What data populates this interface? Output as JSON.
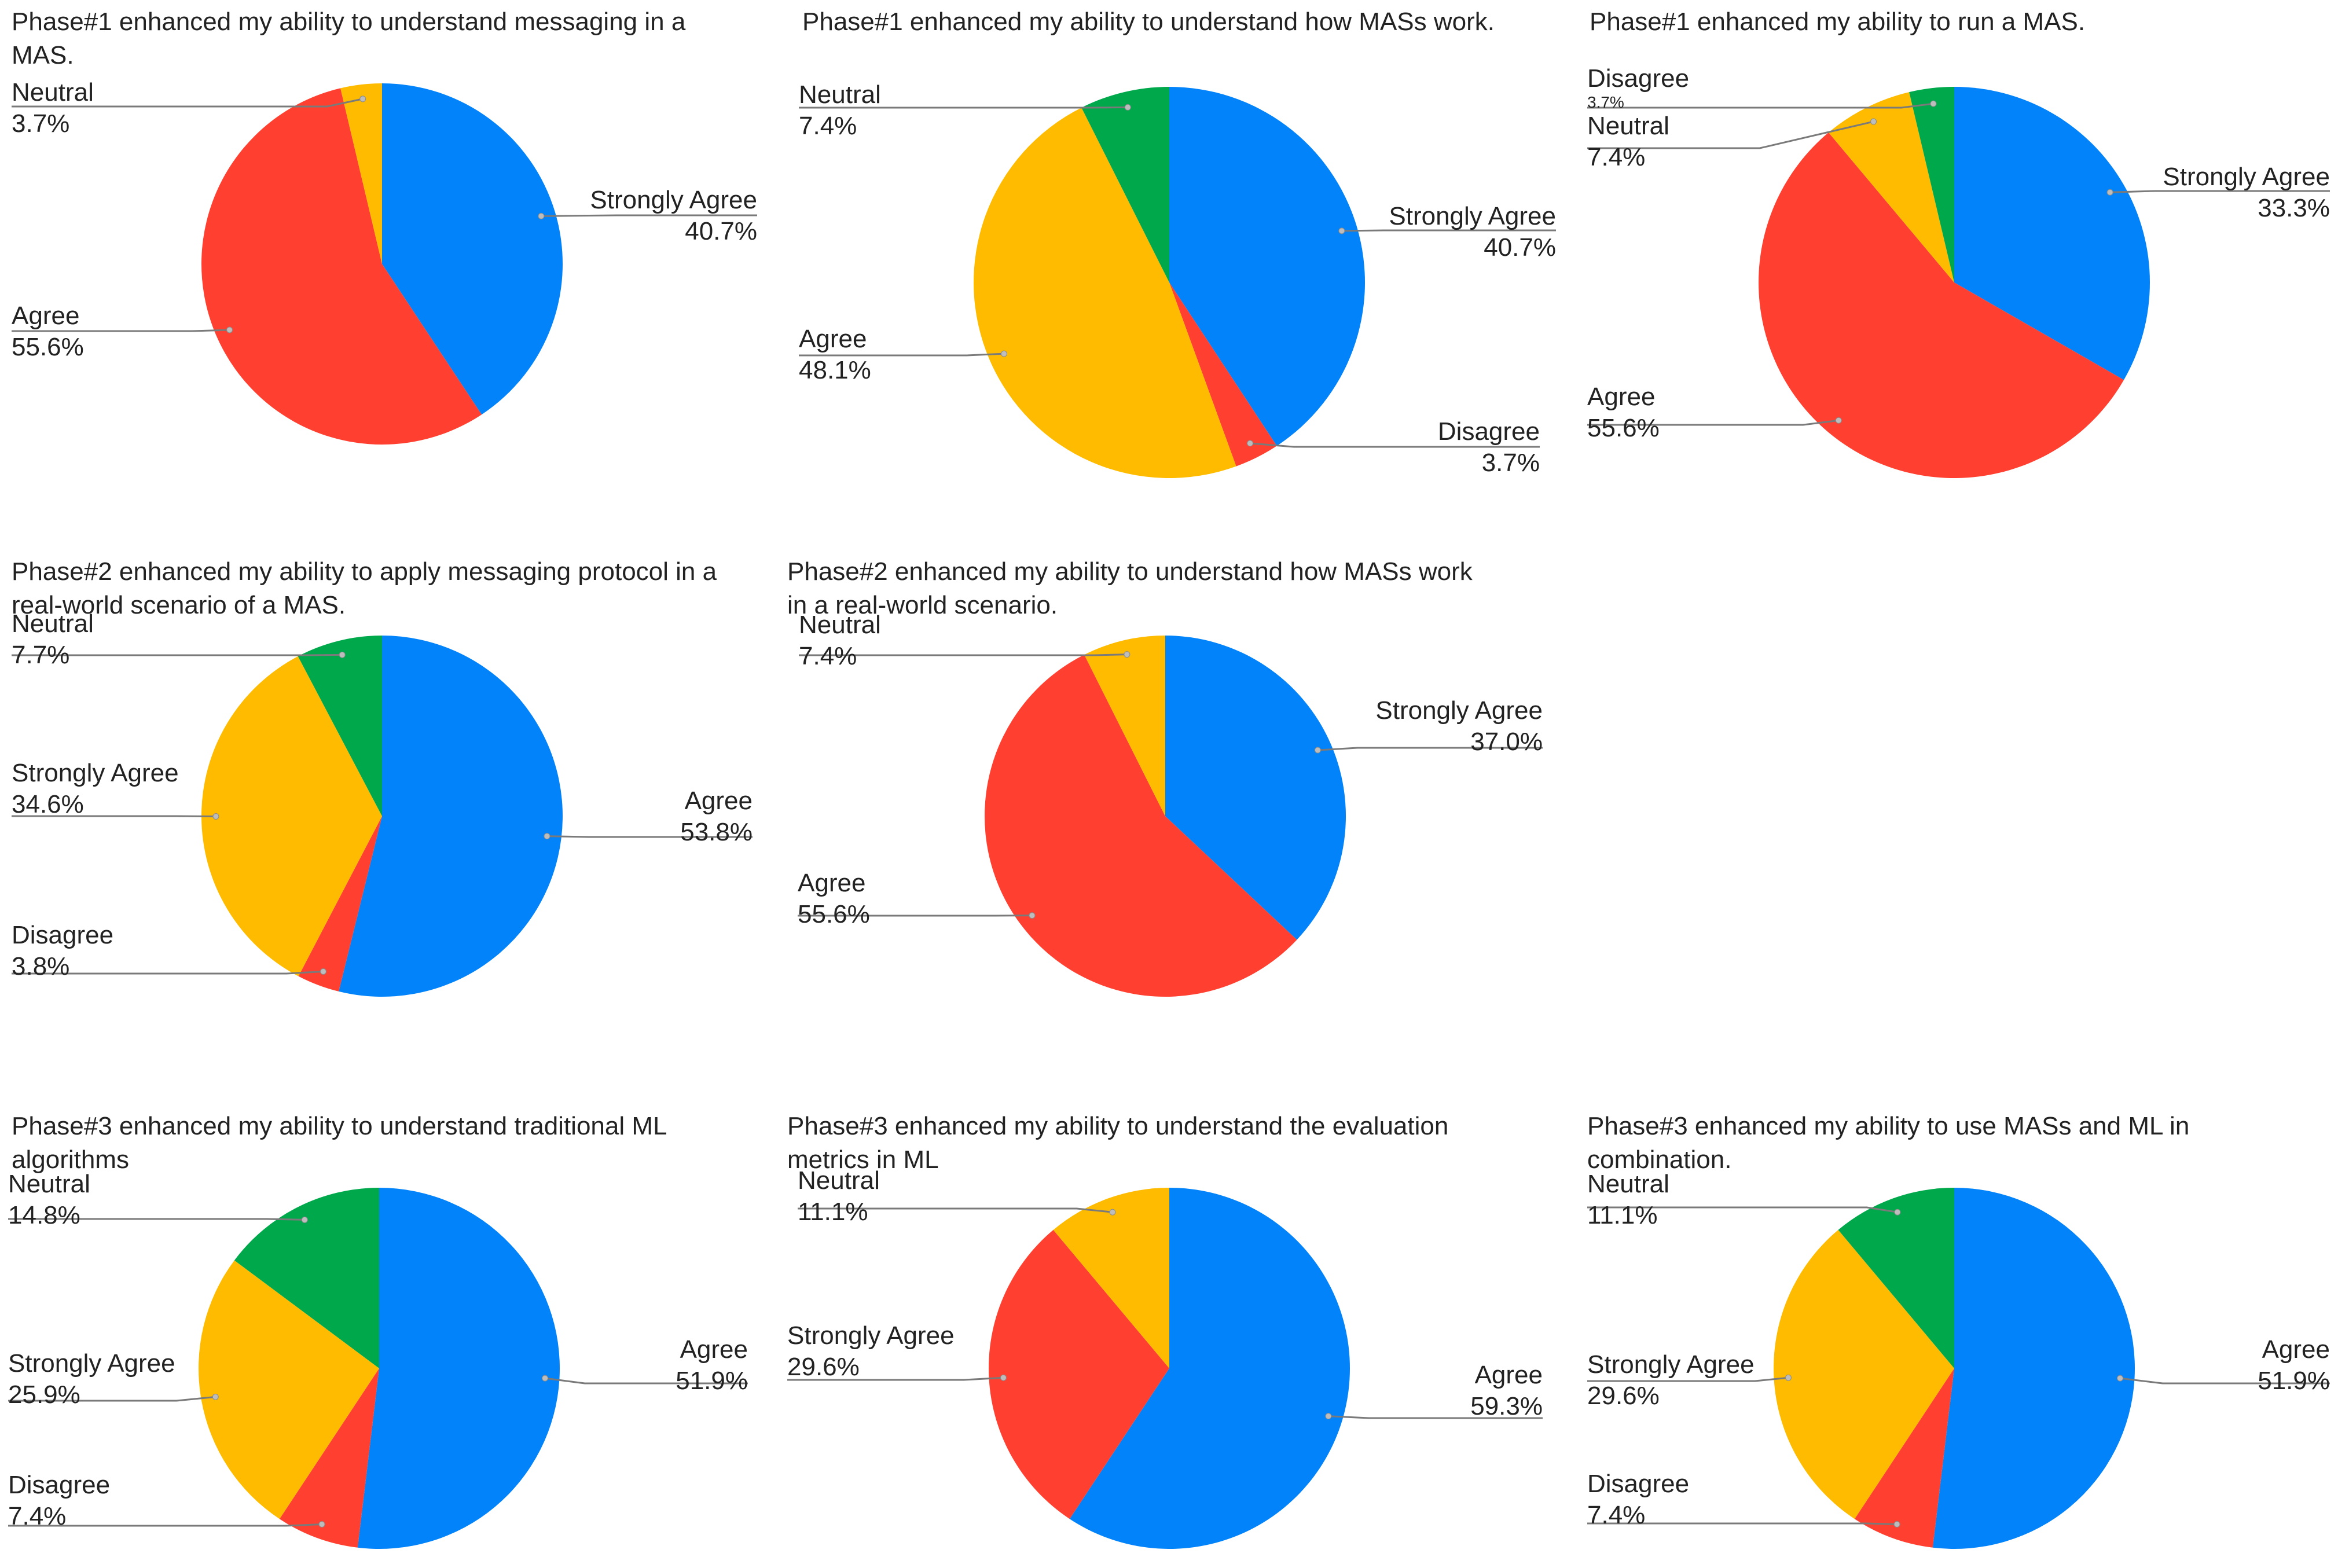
{
  "colors": {
    "blue": "#0283F9",
    "red": "#FF4031",
    "yellow": "#FFBB00",
    "green": "#00A84C"
  },
  "chart_data": [
    {
      "type": "pie",
      "title": "Phase#1 enhanced my ability to understand messaging in a MAS.",
      "title_lines": [
        "Phase#1 enhanced my ability to understand messaging in a",
        "MAS."
      ],
      "slices": [
        {
          "label": "Strongly Agree",
          "value": 40.7,
          "pct_text": "40.7%",
          "color": "blue"
        },
        {
          "label": "Agree",
          "value": 55.6,
          "pct_text": "55.6%",
          "color": "red"
        },
        {
          "label": "Neutral",
          "value": 3.7,
          "pct_text": "3.7%",
          "color": "yellow"
        }
      ]
    },
    {
      "type": "pie",
      "title": "Phase#1 enhanced my ability to understand how MASs work.",
      "title_lines": [
        "Phase#1 enhanced my ability to understand how MASs work."
      ],
      "slices": [
        {
          "label": "Strongly Agree",
          "value": 40.7,
          "pct_text": "40.7%",
          "color": "blue"
        },
        {
          "label": "Disagree",
          "value": 3.7,
          "pct_text": "3.7%",
          "color": "red"
        },
        {
          "label": "Agree",
          "value": 48.1,
          "pct_text": "48.1%",
          "color": "yellow"
        },
        {
          "label": "Neutral",
          "value": 7.4,
          "pct_text": "7.4%",
          "color": "green"
        }
      ]
    },
    {
      "type": "pie",
      "title": "Phase#1 enhanced my ability to run a MAS.",
      "title_lines": [
        "Phase#1 enhanced my ability to run a MAS."
      ],
      "slices": [
        {
          "label": "Strongly Agree",
          "value": 33.3,
          "pct_text": "33.3%",
          "color": "blue"
        },
        {
          "label": "Agree",
          "value": 55.6,
          "pct_text": "55.6%",
          "color": "red"
        },
        {
          "label": "Neutral",
          "value": 7.4,
          "pct_text": "7.4%",
          "color": "yellow"
        },
        {
          "label": "Disagree",
          "value": 3.7,
          "pct_text": "3.7%",
          "color": "green"
        }
      ]
    },
    {
      "type": "pie",
      "title": "Phase#2 enhanced my ability to apply messaging protocol in a real-world scenario of a MAS.",
      "title_lines": [
        "Phase#2 enhanced my ability to apply messaging protocol in a",
        "real-world scenario of a MAS."
      ],
      "slices": [
        {
          "label": "Agree",
          "value": 53.8,
          "pct_text": "53.8%",
          "color": "blue"
        },
        {
          "label": "Disagree",
          "value": 3.8,
          "pct_text": "3.8%",
          "color": "red"
        },
        {
          "label": "Strongly Agree",
          "value": 34.6,
          "pct_text": "34.6%",
          "color": "yellow"
        },
        {
          "label": "Neutral",
          "value": 7.7,
          "pct_text": "7.7%",
          "color": "green"
        }
      ]
    },
    {
      "type": "pie",
      "title": "Phase#2 enhanced my ability to understand how MASs work in a real-world scenario.",
      "title_lines": [
        "Phase#2 enhanced my ability to understand how MASs work",
        "in a real-world scenario."
      ],
      "slices": [
        {
          "label": "Strongly Agree",
          "value": 37.0,
          "pct_text": "37.0%",
          "color": "blue"
        },
        {
          "label": "Agree",
          "value": 55.6,
          "pct_text": "55.6%",
          "color": "red"
        },
        {
          "label": "Neutral",
          "value": 7.4,
          "pct_text": "7.4%",
          "color": "yellow"
        }
      ]
    },
    {
      "type": "pie",
      "title": "Phase#3 enhanced my ability to understand traditional ML algorithms",
      "title_lines": [
        "Phase#3 enhanced my ability to understand traditional ML",
        "algorithms"
      ],
      "slices": [
        {
          "label": "Agree",
          "value": 51.9,
          "pct_text": "51.9%",
          "color": "blue"
        },
        {
          "label": "Disagree",
          "value": 7.4,
          "pct_text": "7.4%",
          "color": "red"
        },
        {
          "label": "Strongly Agree",
          "value": 25.9,
          "pct_text": "25.9%",
          "color": "yellow"
        },
        {
          "label": "Neutral",
          "value": 14.8,
          "pct_text": "14.8%",
          "color": "green"
        }
      ]
    },
    {
      "type": "pie",
      "title": "Phase#3 enhanced my ability to understand the evaluation metrics in ML",
      "title_lines": [
        "Phase#3 enhanced my ability to understand the evaluation",
        "metrics in ML"
      ],
      "slices": [
        {
          "label": "Agree",
          "value": 59.3,
          "pct_text": "59.3%",
          "color": "blue"
        },
        {
          "label": "Strongly Agree",
          "value": 29.6,
          "pct_text": "29.6%",
          "color": "red"
        },
        {
          "label": "Neutral",
          "value": 11.1,
          "pct_text": "11.1%",
          "color": "yellow"
        }
      ]
    },
    {
      "type": "pie",
      "title": "Phase#3 enhanced my ability to use MASs and ML in combination.",
      "title_lines": [
        "Phase#3 enhanced my ability to use MASs and ML in",
        "combination."
      ],
      "slices": [
        {
          "label": "Agree",
          "value": 51.9,
          "pct_text": "51.9%",
          "color": "blue"
        },
        {
          "label": "Disagree",
          "value": 7.4,
          "pct_text": "7.4%",
          "color": "red"
        },
        {
          "label": "Strongly Agree",
          "value": 29.6,
          "pct_text": "29.6%",
          "color": "yellow"
        },
        {
          "label": "Neutral",
          "value": 11.1,
          "pct_text": "11.1%",
          "color": "green"
        }
      ]
    }
  ]
}
